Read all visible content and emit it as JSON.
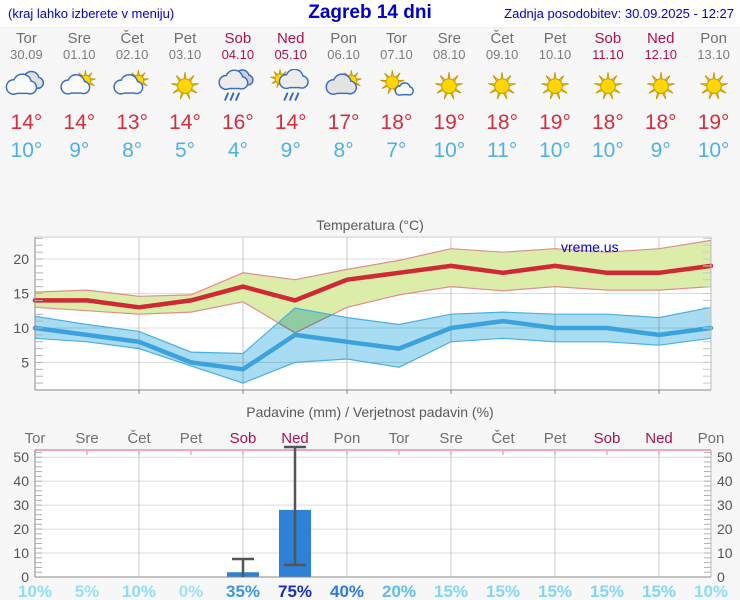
{
  "header": {
    "hint": "(kraj lahko izberete v meniju)",
    "title": "Zagreb 14 dni",
    "updated": "Zadnja posodobitev: 30.09.2025 - 12:27"
  },
  "colors": {
    "header_text": "#0000dd",
    "weekday": "#6f6f6f",
    "weekend": "#b1104e",
    "tmax": "#d62e3e",
    "tmin": "#4fb0e8",
    "bar": "#2d82d8",
    "whisker": "#555555",
    "band_max": "#dcedaa",
    "band_min": "#a7dcf2",
    "watermark": "#0000e8"
  },
  "days": [
    {
      "name": "Tor",
      "date": "30.09",
      "weekend": false,
      "icon": "cloudy",
      "tmax_label": "14°",
      "tmin_label": "10°",
      "pop_label": "10%",
      "pop_color": "#8fdcf5"
    },
    {
      "name": "Sre",
      "date": "01.10",
      "weekend": false,
      "icon": "partly",
      "tmax_label": "14°",
      "tmin_label": "9°",
      "pop_label": "5%",
      "pop_color": "#97e0f6"
    },
    {
      "name": "Čet",
      "date": "02.10",
      "weekend": false,
      "icon": "partly",
      "tmax_label": "13°",
      "tmin_label": "8°",
      "pop_label": "10%",
      "pop_color": "#8fdcf5"
    },
    {
      "name": "Pet",
      "date": "03.10",
      "weekend": false,
      "icon": "sunny",
      "tmax_label": "14°",
      "tmin_label": "5°",
      "pop_label": "0%",
      "pop_color": "#9ce2f7"
    },
    {
      "name": "Sob",
      "date": "04.10",
      "weekend": true,
      "icon": "rain",
      "tmax_label": "16°",
      "tmin_label": "4°",
      "pop_label": "35%",
      "pop_color": "#3e96e3"
    },
    {
      "name": "Ned",
      "date": "05.10",
      "weekend": true,
      "icon": "sunrain",
      "tmax_label": "14°",
      "tmin_label": "9°",
      "pop_label": "75%",
      "pop_color": "#1a2fc0"
    },
    {
      "name": "Pon",
      "date": "06.10",
      "weekend": false,
      "icon": "cloudsun",
      "tmax_label": "17°",
      "tmin_label": "8°",
      "pop_label": "40%",
      "pop_color": "#2f7bdc"
    },
    {
      "name": "Tor",
      "date": "07.10",
      "weekend": false,
      "icon": "mostlysunny",
      "tmax_label": "18°",
      "tmin_label": "7°",
      "pop_label": "20%",
      "pop_color": "#62bced"
    },
    {
      "name": "Sre",
      "date": "08.10",
      "weekend": false,
      "icon": "sunny",
      "tmax_label": "19°",
      "tmin_label": "10°",
      "pop_label": "15%",
      "pop_color": "#84d4f2"
    },
    {
      "name": "Čet",
      "date": "09.10",
      "weekend": false,
      "icon": "sunny",
      "tmax_label": "18°",
      "tmin_label": "11°",
      "pop_label": "15%",
      "pop_color": "#84d4f2"
    },
    {
      "name": "Pet",
      "date": "10.10",
      "weekend": false,
      "icon": "sunny",
      "tmax_label": "19°",
      "tmin_label": "10°",
      "pop_label": "15%",
      "pop_color": "#84d4f2"
    },
    {
      "name": "Sob",
      "date": "11.10",
      "weekend": true,
      "icon": "sunny",
      "tmax_label": "18°",
      "tmin_label": "10°",
      "pop_label": "15%",
      "pop_color": "#84d4f2"
    },
    {
      "name": "Ned",
      "date": "12.10",
      "weekend": true,
      "icon": "sunny",
      "tmax_label": "18°",
      "tmin_label": "9°",
      "pop_label": "15%",
      "pop_color": "#84d4f2"
    },
    {
      "name": "Pon",
      "date": "13.10",
      "weekend": false,
      "icon": "sunny",
      "tmax_label": "19°",
      "tmin_label": "10°",
      "pop_label": "10%",
      "pop_color": "#8fdcf5"
    }
  ],
  "chart_data": [
    {
      "type": "line",
      "title": "Temperatura (°C)",
      "categories": [
        "Tor 30.09",
        "Sre 01.10",
        "Čet 02.10",
        "Pet 03.10",
        "Sob 04.10",
        "Ned 05.10",
        "Pon 06.10",
        "Tor 07.10",
        "Sre 08.10",
        "Čet 09.10",
        "Pet 10.10",
        "Sob 11.10",
        "Ned 12.10",
        "Pon 13.10"
      ],
      "series": [
        {
          "name": "tmax",
          "color": "#cf2936",
          "values": [
            14,
            14,
            13,
            14,
            16,
            14,
            17,
            18,
            19,
            18,
            19,
            18,
            18,
            19
          ]
        },
        {
          "name": "tmax_band_upper",
          "color": "#dcedaa",
          "values": [
            15.2,
            15.5,
            14.6,
            14.8,
            18,
            17,
            18.5,
            19.8,
            21.5,
            21,
            21.5,
            21,
            21.5,
            22.7
          ]
        },
        {
          "name": "tmax_band_lower",
          "color": "#dcedaa",
          "values": [
            13,
            12.5,
            12,
            12.3,
            13.8,
            9.3,
            13,
            14.8,
            16,
            15.4,
            16,
            15.5,
            15.5,
            16
          ]
        },
        {
          "name": "tmin",
          "color": "#3ba2dd",
          "values": [
            10,
            9,
            8,
            5,
            4,
            9,
            8,
            7,
            10,
            11,
            10,
            10,
            9,
            10
          ]
        },
        {
          "name": "tmin_band_upper",
          "color": "#a7dcf2",
          "values": [
            11.7,
            10.5,
            9.5,
            6.5,
            6.3,
            12.9,
            11.5,
            10.5,
            12,
            12.3,
            12,
            12,
            11.5,
            13
          ]
        },
        {
          "name": "tmin_band_lower",
          "color": "#a7dcf2",
          "values": [
            8.5,
            8,
            7,
            4.5,
            2,
            5,
            5.5,
            4.3,
            8,
            8.5,
            8,
            8,
            7.5,
            8.5
          ]
        }
      ],
      "ylim": [
        1,
        23.2
      ],
      "yticks": [
        5,
        10,
        15,
        20
      ],
      "grid": true,
      "legend": "none",
      "watermark": "vreme.us"
    },
    {
      "type": "bar",
      "title": "Padavine (mm) / Verjetnost padavin (%)",
      "categories": [
        "Tor",
        "Sre",
        "Čet",
        "Pet",
        "Sob",
        "Ned",
        "Pon",
        "Tor",
        "Sre",
        "Čet",
        "Pet",
        "Sob",
        "Ned",
        "Pon"
      ],
      "values_mm": [
        0,
        0,
        0,
        0,
        2,
        28,
        0,
        0,
        0,
        0,
        0,
        0,
        0,
        0
      ],
      "range_mm": [
        [
          0,
          0
        ],
        [
          0,
          0
        ],
        [
          0,
          0
        ],
        [
          0,
          0
        ],
        [
          0,
          7.5
        ],
        [
          5,
          55
        ],
        [
          0,
          0
        ],
        [
          0,
          0
        ],
        [
          0,
          0
        ],
        [
          0,
          0
        ],
        [
          0,
          0
        ],
        [
          0,
          0
        ],
        [
          0,
          0
        ],
        [
          0,
          0
        ]
      ],
      "probability_pct": [
        10,
        5,
        10,
        0,
        35,
        75,
        40,
        20,
        15,
        15,
        15,
        15,
        15,
        10
      ],
      "ylim": [
        0,
        53
      ],
      "yticks": [
        0,
        10,
        20,
        30,
        40,
        50
      ],
      "grid": true,
      "legend": "none"
    }
  ]
}
